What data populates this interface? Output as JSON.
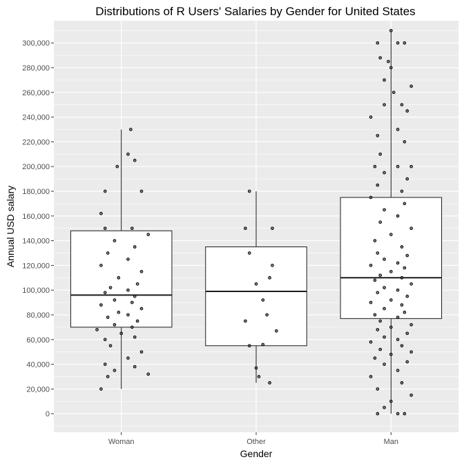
{
  "chart_data": {
    "type": "boxplot",
    "title": "Distributions of R Users' Salaries by Gender for United States",
    "xlabel": "Gender",
    "ylabel": "Annual USD salary",
    "categories": [
      "Woman",
      "Other",
      "Man"
    ],
    "ylim": [
      -15000,
      318000
    ],
    "yticks": [
      0,
      20000,
      40000,
      60000,
      80000,
      100000,
      120000,
      140000,
      160000,
      180000,
      200000,
      220000,
      240000,
      260000,
      280000,
      300000
    ],
    "ytick_labels": [
      "0",
      "20,000",
      "40,000",
      "60,000",
      "80,000",
      "100,000",
      "120,000",
      "140,000",
      "160,000",
      "180,000",
      "200,000",
      "220,000",
      "240,000",
      "260,000",
      "280,000",
      "300,000"
    ],
    "grid": true,
    "legend": "none",
    "boxes": [
      {
        "category": "Woman",
        "whisker_low": 20000,
        "q1": 70000,
        "median": 96000,
        "q3": 148000,
        "whisker_high": 230000
      },
      {
        "category": "Other",
        "whisker_low": 25000,
        "q1": 55000,
        "median": 99000,
        "q3": 135000,
        "whisker_high": 180000
      },
      {
        "category": "Man",
        "whisker_low": 0,
        "q1": 77000,
        "median": 110000,
        "q3": 175000,
        "whisker_high": 310000
      }
    ],
    "points": {
      "Woman": [
        {
          "x": -0.15,
          "y": 20000
        },
        {
          "x": -0.1,
          "y": 30000
        },
        {
          "x": 0.2,
          "y": 32000
        },
        {
          "x": -0.05,
          "y": 35000
        },
        {
          "x": 0.1,
          "y": 38000
        },
        {
          "x": -0.12,
          "y": 40000
        },
        {
          "x": 0.05,
          "y": 45000
        },
        {
          "x": 0.15,
          "y": 50000
        },
        {
          "x": -0.08,
          "y": 55000
        },
        {
          "x": -0.12,
          "y": 60000
        },
        {
          "x": 0.1,
          "y": 62000
        },
        {
          "x": 0.0,
          "y": 65000
        },
        {
          "x": -0.18,
          "y": 68000
        },
        {
          "x": 0.08,
          "y": 70000
        },
        {
          "x": -0.05,
          "y": 72000
        },
        {
          "x": 0.12,
          "y": 75000
        },
        {
          "x": -0.1,
          "y": 78000
        },
        {
          "x": 0.05,
          "y": 80000
        },
        {
          "x": -0.02,
          "y": 82000
        },
        {
          "x": 0.15,
          "y": 85000
        },
        {
          "x": -0.15,
          "y": 88000
        },
        {
          "x": 0.08,
          "y": 90000
        },
        {
          "x": -0.05,
          "y": 92000
        },
        {
          "x": 0.1,
          "y": 95000
        },
        {
          "x": -0.12,
          "y": 98000
        },
        {
          "x": 0.05,
          "y": 100000
        },
        {
          "x": -0.08,
          "y": 102000
        },
        {
          "x": 0.12,
          "y": 105000
        },
        {
          "x": -0.02,
          "y": 110000
        },
        {
          "x": 0.15,
          "y": 115000
        },
        {
          "x": -0.15,
          "y": 120000
        },
        {
          "x": 0.05,
          "y": 125000
        },
        {
          "x": -0.1,
          "y": 130000
        },
        {
          "x": 0.1,
          "y": 135000
        },
        {
          "x": -0.05,
          "y": 140000
        },
        {
          "x": 0.2,
          "y": 145000
        },
        {
          "x": -0.12,
          "y": 150000
        },
        {
          "x": 0.08,
          "y": 150000
        },
        {
          "x": -0.15,
          "y": 162000
        },
        {
          "x": -0.12,
          "y": 180000
        },
        {
          "x": 0.15,
          "y": 180000
        },
        {
          "x": -0.03,
          "y": 200000
        },
        {
          "x": 0.1,
          "y": 205000
        },
        {
          "x": 0.05,
          "y": 210000
        },
        {
          "x": 0.07,
          "y": 230000
        }
      ],
      "Other": [
        {
          "x": 0.1,
          "y": 25000
        },
        {
          "x": 0.02,
          "y": 30000
        },
        {
          "x": 0.0,
          "y": 37000
        },
        {
          "x": -0.05,
          "y": 55000
        },
        {
          "x": 0.05,
          "y": 56000
        },
        {
          "x": 0.15,
          "y": 67000
        },
        {
          "x": -0.08,
          "y": 75000
        },
        {
          "x": 0.08,
          "y": 80000
        },
        {
          "x": 0.05,
          "y": 92000
        },
        {
          "x": 0.0,
          "y": 105000
        },
        {
          "x": 0.1,
          "y": 110000
        },
        {
          "x": 0.12,
          "y": 120000
        },
        {
          "x": -0.05,
          "y": 130000
        },
        {
          "x": -0.08,
          "y": 150000
        },
        {
          "x": 0.12,
          "y": 150000
        },
        {
          "x": -0.05,
          "y": 180000
        }
      ],
      "Man": [
        {
          "x": -0.1,
          "y": 0
        },
        {
          "x": 0.05,
          "y": 0
        },
        {
          "x": 0.1,
          "y": 0
        },
        {
          "x": -0.05,
          "y": 5000
        },
        {
          "x": 0.0,
          "y": 10000
        },
        {
          "x": 0.15,
          "y": 15000
        },
        {
          "x": -0.1,
          "y": 20000
        },
        {
          "x": 0.08,
          "y": 25000
        },
        {
          "x": -0.15,
          "y": 30000
        },
        {
          "x": 0.05,
          "y": 35000
        },
        {
          "x": -0.05,
          "y": 40000
        },
        {
          "x": 0.12,
          "y": 42000
        },
        {
          "x": -0.12,
          "y": 45000
        },
        {
          "x": 0.0,
          "y": 48000
        },
        {
          "x": 0.15,
          "y": 50000
        },
        {
          "x": -0.08,
          "y": 52000
        },
        {
          "x": 0.08,
          "y": 55000
        },
        {
          "x": -0.15,
          "y": 58000
        },
        {
          "x": 0.05,
          "y": 60000
        },
        {
          "x": -0.05,
          "y": 62000
        },
        {
          "x": 0.12,
          "y": 65000
        },
        {
          "x": -0.1,
          "y": 68000
        },
        {
          "x": 0.0,
          "y": 70000
        },
        {
          "x": 0.15,
          "y": 72000
        },
        {
          "x": -0.08,
          "y": 75000
        },
        {
          "x": 0.05,
          "y": 78000
        },
        {
          "x": -0.12,
          "y": 80000
        },
        {
          "x": 0.1,
          "y": 82000
        },
        {
          "x": -0.05,
          "y": 85000
        },
        {
          "x": 0.08,
          "y": 88000
        },
        {
          "x": -0.15,
          "y": 90000
        },
        {
          "x": 0.0,
          "y": 92000
        },
        {
          "x": 0.12,
          "y": 95000
        },
        {
          "x": -0.1,
          "y": 98000
        },
        {
          "x": 0.05,
          "y": 100000
        },
        {
          "x": -0.05,
          "y": 102000
        },
        {
          "x": 0.15,
          "y": 105000
        },
        {
          "x": -0.12,
          "y": 108000
        },
        {
          "x": 0.08,
          "y": 110000
        },
        {
          "x": -0.08,
          "y": 112000
        },
        {
          "x": 0.0,
          "y": 115000
        },
        {
          "x": 0.1,
          "y": 118000
        },
        {
          "x": -0.15,
          "y": 120000
        },
        {
          "x": 0.05,
          "y": 122000
        },
        {
          "x": -0.05,
          "y": 125000
        },
        {
          "x": 0.12,
          "y": 128000
        },
        {
          "x": -0.1,
          "y": 130000
        },
        {
          "x": 0.08,
          "y": 135000
        },
        {
          "x": -0.12,
          "y": 140000
        },
        {
          "x": 0.0,
          "y": 145000
        },
        {
          "x": 0.15,
          "y": 150000
        },
        {
          "x": -0.08,
          "y": 155000
        },
        {
          "x": 0.05,
          "y": 160000
        },
        {
          "x": -0.05,
          "y": 165000
        },
        {
          "x": 0.1,
          "y": 170000
        },
        {
          "x": -0.15,
          "y": 175000
        },
        {
          "x": 0.08,
          "y": 180000
        },
        {
          "x": -0.1,
          "y": 185000
        },
        {
          "x": 0.12,
          "y": 190000
        },
        {
          "x": -0.05,
          "y": 195000
        },
        {
          "x": 0.05,
          "y": 200000
        },
        {
          "x": -0.12,
          "y": 200000
        },
        {
          "x": 0.15,
          "y": 200000
        },
        {
          "x": -0.08,
          "y": 210000
        },
        {
          "x": 0.1,
          "y": 220000
        },
        {
          "x": -0.1,
          "y": 225000
        },
        {
          "x": 0.05,
          "y": 230000
        },
        {
          "x": -0.15,
          "y": 240000
        },
        {
          "x": 0.12,
          "y": 245000
        },
        {
          "x": -0.05,
          "y": 250000
        },
        {
          "x": 0.08,
          "y": 250000
        },
        {
          "x": 0.02,
          "y": 260000
        },
        {
          "x": 0.15,
          "y": 265000
        },
        {
          "x": -0.05,
          "y": 270000
        },
        {
          "x": 0.0,
          "y": 280000
        },
        {
          "x": -0.02,
          "y": 285000
        },
        {
          "x": -0.08,
          "y": 288000
        },
        {
          "x": -0.1,
          "y": 300000
        },
        {
          "x": 0.05,
          "y": 300000
        },
        {
          "x": 0.1,
          "y": 300000
        },
        {
          "x": 0.0,
          "y": 310000
        }
      ]
    }
  }
}
